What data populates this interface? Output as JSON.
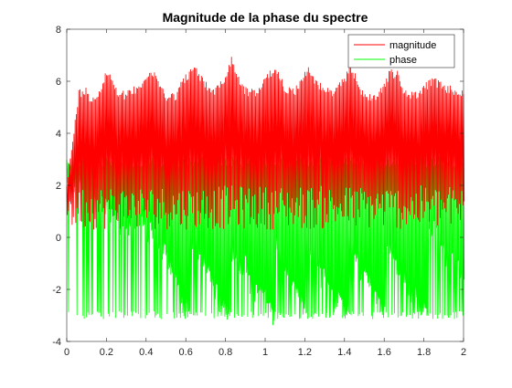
{
  "chart_data": {
    "type": "line",
    "title": "Magnitude de la phase du spectre",
    "xlabel": "",
    "ylabel": "",
    "xlim": [
      0,
      2
    ],
    "ylim": [
      -4,
      8
    ],
    "grid": false,
    "legend_position": "top-right",
    "x_ticks": [
      0,
      0.2,
      0.4,
      0.6,
      0.8,
      1,
      1.2,
      1.4,
      1.6,
      1.8,
      2
    ],
    "x_tick_labels": [
      "0",
      "0.2",
      "0.4",
      "0.6",
      "0.8",
      "1",
      "1.2",
      "1.4",
      "1.6",
      "1.8",
      "2"
    ],
    "y_ticks": [
      -4,
      -2,
      0,
      2,
      4,
      6,
      8
    ],
    "y_tick_labels": [
      "-4",
      "-2",
      "0",
      "2",
      "4",
      "6",
      "8"
    ],
    "series": [
      {
        "name": "magnitude",
        "color": "#ff0000",
        "peak_envelope": {
          "x": [
            0,
            0.03,
            0.06,
            0.1,
            0.12,
            0.15,
            0.18,
            0.2,
            0.23,
            0.25,
            0.3,
            0.35,
            0.4,
            0.43,
            0.47,
            0.5,
            0.55,
            0.58,
            0.62,
            0.65,
            0.7,
            0.75,
            0.8,
            0.83,
            0.87,
            0.9,
            0.95,
            1.0,
            1.03,
            1.07,
            1.1,
            1.15,
            1.2,
            1.22,
            1.26,
            1.3,
            1.35,
            1.4,
            1.43,
            1.47,
            1.5,
            1.55,
            1.6,
            1.63,
            1.67,
            1.7,
            1.75,
            1.8,
            1.85,
            1.9,
            1.95,
            2.0
          ],
          "y": [
            2.2,
            3.8,
            5.7,
            5.8,
            5.5,
            5.6,
            6.0,
            6.5,
            6.3,
            5.8,
            5.6,
            5.9,
            6.3,
            6.5,
            6.0,
            5.6,
            5.6,
            6.1,
            6.5,
            6.6,
            6.0,
            5.8,
            6.3,
            7.0,
            6.2,
            5.8,
            5.7,
            6.2,
            6.5,
            6.4,
            5.9,
            5.8,
            6.4,
            6.6,
            6.1,
            5.8,
            5.7,
            6.2,
            6.8,
            6.0,
            5.6,
            5.5,
            6.0,
            6.5,
            6.4,
            5.7,
            5.6,
            5.9,
            6.2,
            5.9,
            5.8,
            5.7
          ]
        },
        "trough_min": 0.3,
        "trough_max": 2.0
      },
      {
        "name": "phase",
        "color": "#00ff00",
        "band_max": 3.1,
        "band_min": -3.14,
        "segments": [
          {
            "x": [
              0.0,
              0.35
            ],
            "from": 2.8,
            "to": 0.5
          },
          {
            "x": [
              0.35,
              0.47
            ],
            "from": 1.5,
            "to": 0.0
          },
          {
            "x": [
              0.47,
              0.62
            ],
            "from": 0.0,
            "to": -2.6
          },
          {
            "x": [
              0.62,
              0.82
            ],
            "from": 0.4,
            "to": -2.9
          },
          {
            "x": [
              0.82,
              1.05
            ],
            "from": 0.0,
            "to": -2.8
          },
          {
            "x": [
              1.05,
              1.2
            ],
            "from": 0.0,
            "to": -2.4
          },
          {
            "x": [
              1.2,
              1.42
            ],
            "from": 0.0,
            "to": -2.8
          },
          {
            "x": [
              1.42,
              1.6
            ],
            "from": 0.2,
            "to": -2.5
          },
          {
            "x": [
              1.6,
              1.82
            ],
            "from": 0.0,
            "to": -2.9
          },
          {
            "x": [
              1.82,
              2.0
            ],
            "from": 1.0,
            "to": -1.5
          }
        ]
      }
    ]
  }
}
